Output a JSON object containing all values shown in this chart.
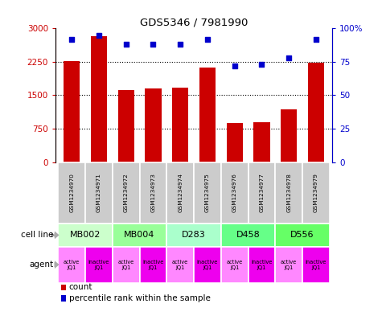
{
  "title": "GDS5346 / 7981990",
  "samples": [
    "GSM1234970",
    "GSM1234971",
    "GSM1234972",
    "GSM1234973",
    "GSM1234974",
    "GSM1234975",
    "GSM1234976",
    "GSM1234977",
    "GSM1234978",
    "GSM1234979"
  ],
  "counts": [
    2270,
    2820,
    1620,
    1650,
    1670,
    2130,
    870,
    900,
    1180,
    2230
  ],
  "percentiles": [
    92,
    95,
    88,
    88,
    88,
    92,
    72,
    73,
    78,
    92
  ],
  "bar_color": "#cc0000",
  "dot_color": "#0000cc",
  "ylim_left": [
    0,
    3000
  ],
  "ylim_right": [
    0,
    100
  ],
  "yticks_left": [
    0,
    750,
    1500,
    2250,
    3000
  ],
  "ytick_labels_left": [
    "0",
    "750",
    "1500",
    "2250",
    "3000"
  ],
  "yticks_right": [
    0,
    25,
    50,
    75,
    100
  ],
  "ytick_labels_right": [
    "0",
    "25",
    "50",
    "75",
    "100%"
  ],
  "cell_line_groups": [
    {
      "label": "MB002",
      "start": 0,
      "end": 2,
      "color": "#ccffcc"
    },
    {
      "label": "MB004",
      "start": 2,
      "end": 4,
      "color": "#99ff99"
    },
    {
      "label": "D283",
      "start": 4,
      "end": 6,
      "color": "#aaffcc"
    },
    {
      "label": "D458",
      "start": 6,
      "end": 8,
      "color": "#66ff88"
    },
    {
      "label": "D556",
      "start": 8,
      "end": 10,
      "color": "#66ff66"
    }
  ],
  "agents": [
    "active\nJQ1",
    "inactive\nJQ1",
    "active\nJQ1",
    "inactive\nJQ1",
    "active\nJQ1",
    "inactive\nJQ1",
    "active\nJQ1",
    "inactive\nJQ1",
    "active\nJQ1",
    "inactive\nJQ1"
  ],
  "agent_active_color": "#ff88ff",
  "agent_inactive_color": "#ee00ee",
  "gsm_bg_color": "#cccccc",
  "legend_count_color": "#cc0000",
  "legend_dot_color": "#0000cc",
  "cell_line_label": "cell line",
  "agent_label": "agent",
  "legend_count_text": "count",
  "legend_percentile_text": "percentile rank within the sample",
  "grid_color": "#000000"
}
